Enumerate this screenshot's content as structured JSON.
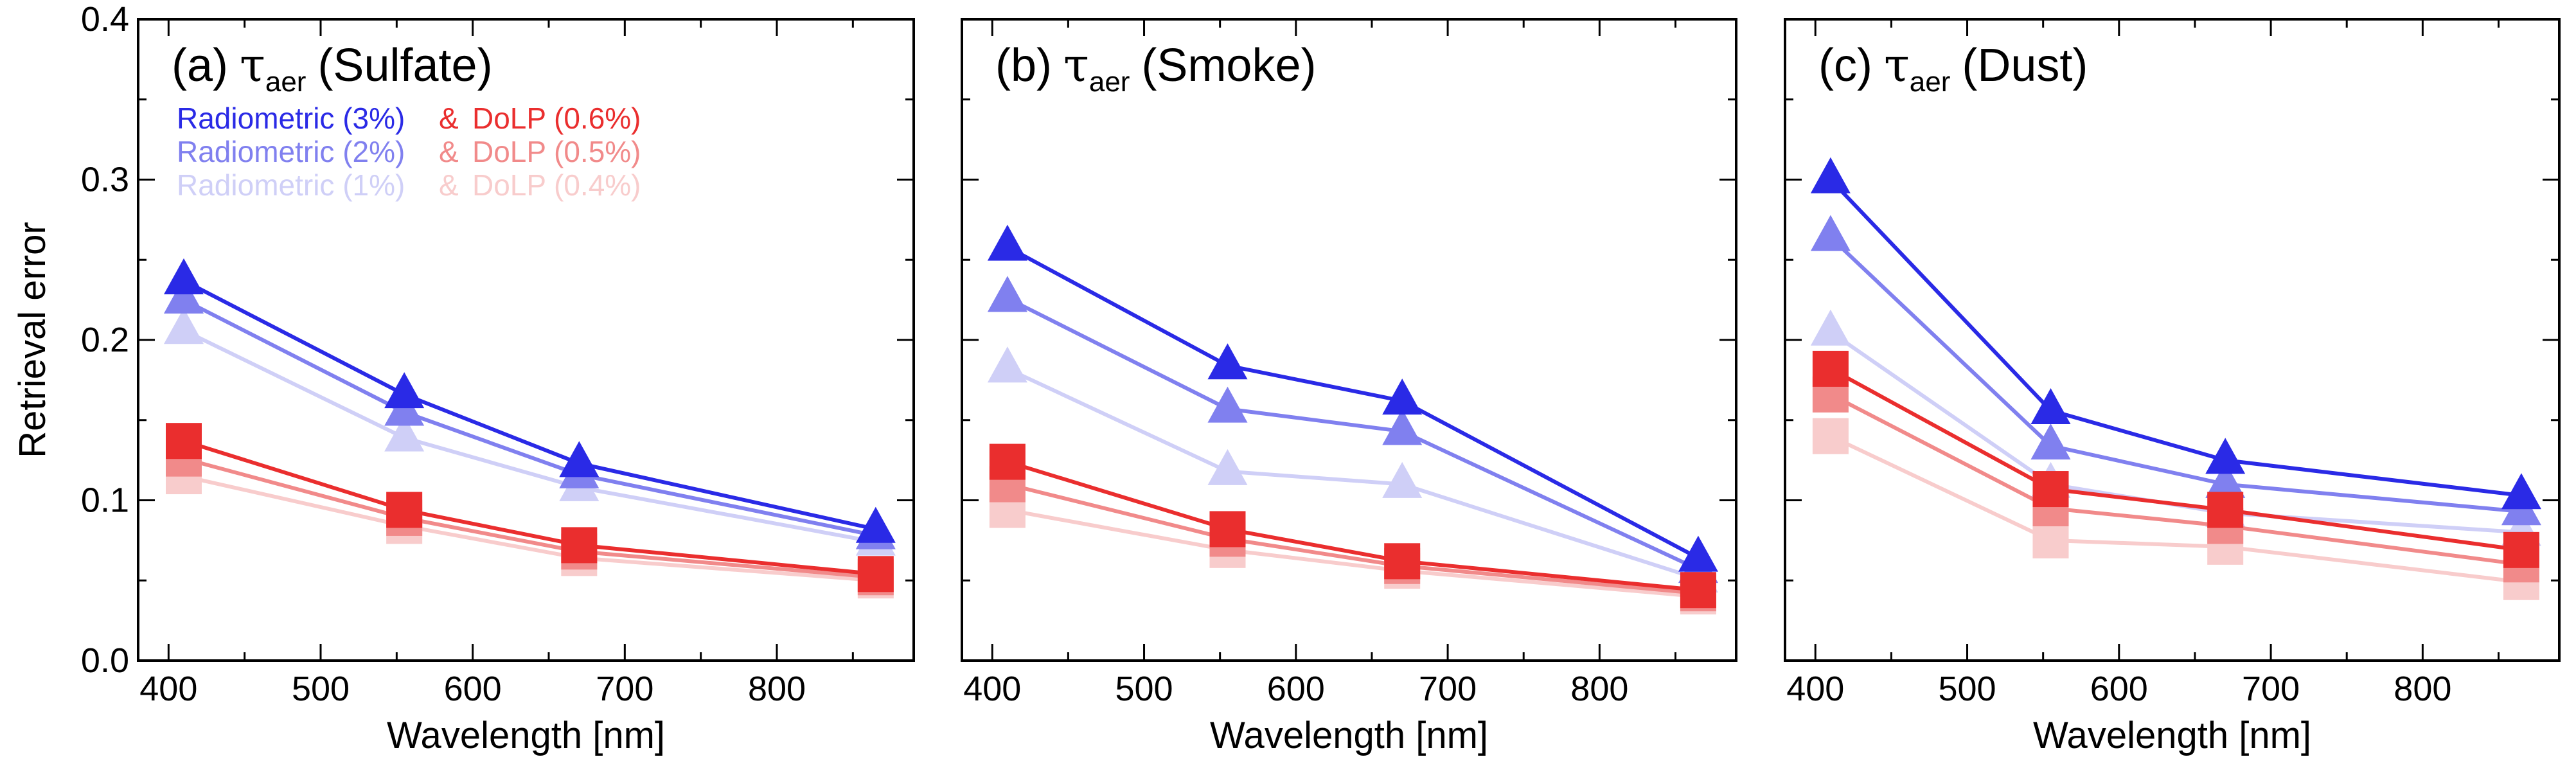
{
  "chart_data": [
    {
      "type": "line",
      "panel_label": "(a)",
      "title_symbol": "τ",
      "title_subscript": "aer",
      "title_suffix": "(Sulfate)",
      "xlabel": "Wavelength [nm]",
      "ylabel": "Retrieval error",
      "xlim": [
        380,
        890
      ],
      "ylim": [
        0.0,
        0.4
      ],
      "x": [
        410,
        555,
        670,
        865
      ],
      "series": [
        {
          "name": "Radiometric (3%)",
          "marker": "triangle",
          "color": "#2a2ae6",
          "values": [
            0.237,
            0.166,
            0.123,
            0.082
          ]
        },
        {
          "name": "Radiometric (2%)",
          "marker": "triangle",
          "color": "#8080ef",
          "values": [
            0.225,
            0.155,
            0.116,
            0.078
          ]
        },
        {
          "name": "Radiometric (1%)",
          "marker": "triangle",
          "color": "#cfcff7",
          "values": [
            0.206,
            0.139,
            0.108,
            0.074
          ]
        },
        {
          "name": "DoLP (0.6%)",
          "marker": "square",
          "color": "#ea2e2e",
          "values": [
            0.137,
            0.094,
            0.072,
            0.054
          ]
        },
        {
          "name": "DoLP (0.5%)",
          "marker": "square",
          "color": "#f18a8a",
          "values": [
            0.126,
            0.089,
            0.068,
            0.052
          ]
        },
        {
          "name": "DoLP (0.4%)",
          "marker": "square",
          "color": "#f8cccc",
          "values": [
            0.115,
            0.084,
            0.064,
            0.05
          ]
        }
      ]
    },
    {
      "type": "line",
      "panel_label": "(b)",
      "title_symbol": "τ",
      "title_subscript": "aer",
      "title_suffix": "(Smoke)",
      "xlabel": "Wavelength [nm]",
      "ylabel": "",
      "xlim": [
        380,
        890
      ],
      "ylim": [
        0.0,
        0.4
      ],
      "x": [
        410,
        555,
        670,
        865
      ],
      "series": [
        {
          "name": "Radiometric (3%)",
          "marker": "triangle",
          "color": "#2a2ae6",
          "values": [
            0.258,
            0.184,
            0.162,
            0.064
          ]
        },
        {
          "name": "Radiometric (2%)",
          "marker": "triangle",
          "color": "#8080ef",
          "values": [
            0.226,
            0.157,
            0.143,
            0.057
          ]
        },
        {
          "name": "Radiometric (1%)",
          "marker": "triangle",
          "color": "#cfcff7",
          "values": [
            0.182,
            0.118,
            0.11,
            0.051
          ]
        },
        {
          "name": "DoLP (0.6%)",
          "marker": "square",
          "color": "#ea2e2e",
          "values": [
            0.124,
            0.082,
            0.062,
            0.044
          ]
        },
        {
          "name": "DoLP (0.5%)",
          "marker": "square",
          "color": "#f18a8a",
          "values": [
            0.11,
            0.076,
            0.059,
            0.042
          ]
        },
        {
          "name": "DoLP (0.4%)",
          "marker": "square",
          "color": "#f8cccc",
          "values": [
            0.094,
            0.069,
            0.056,
            0.04
          ]
        }
      ]
    },
    {
      "type": "line",
      "panel_label": "(c)",
      "title_symbol": "τ",
      "title_subscript": "aer",
      "title_suffix": "(Dust)",
      "xlabel": "Wavelength [nm]",
      "ylabel": "",
      "xlim": [
        380,
        890
      ],
      "ylim": [
        0.0,
        0.4
      ],
      "x": [
        410,
        555,
        670,
        865
      ],
      "series": [
        {
          "name": "Radiometric (3%)",
          "marker": "triangle",
          "color": "#2a2ae6",
          "values": [
            0.3,
            0.156,
            0.125,
            0.103
          ]
        },
        {
          "name": "Radiometric (2%)",
          "marker": "triangle",
          "color": "#8080ef",
          "values": [
            0.264,
            0.134,
            0.11,
            0.093
          ]
        },
        {
          "name": "Radiometric (1%)",
          "marker": "triangle",
          "color": "#cfcff7",
          "values": [
            0.205,
            0.11,
            0.092,
            0.08
          ]
        },
        {
          "name": "DoLP (0.6%)",
          "marker": "square",
          "color": "#ea2e2e",
          "values": [
            0.182,
            0.107,
            0.094,
            0.069
          ]
        },
        {
          "name": "DoLP (0.5%)",
          "marker": "square",
          "color": "#f18a8a",
          "values": [
            0.166,
            0.095,
            0.084,
            0.06
          ]
        },
        {
          "name": "DoLP (0.4%)",
          "marker": "square",
          "color": "#f8cccc",
          "values": [
            0.14,
            0.075,
            0.071,
            0.049
          ]
        }
      ]
    }
  ],
  "legend": {
    "separator": "&",
    "rows": [
      {
        "radiometric": "Radiometric (3%)",
        "dolp": "DoLP (0.6%)",
        "blue": "#2a2ae6",
        "red": "#ea2e2e"
      },
      {
        "radiometric": "Radiometric (2%)",
        "dolp": "DoLP (0.5%)",
        "blue": "#8080ef",
        "red": "#f18a8a"
      },
      {
        "radiometric": "Radiometric (1%)",
        "dolp": "DoLP (0.4%)",
        "blue": "#cfcff7",
        "red": "#f8cccc"
      }
    ]
  },
  "x_ticks": [
    400,
    500,
    600,
    700,
    800
  ],
  "y_ticks": [
    "0.0",
    "0.1",
    "0.2",
    "0.3",
    "0.4"
  ]
}
